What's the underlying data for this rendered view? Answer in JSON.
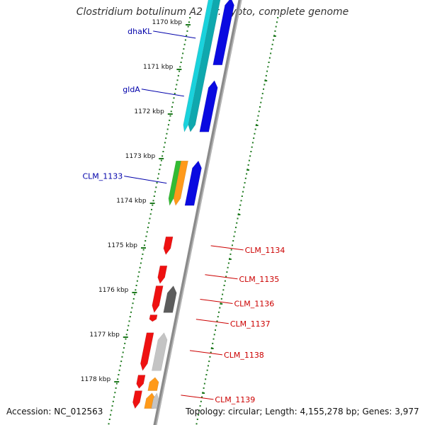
{
  "header": {
    "title": "Clostridium botulinum A2 str. Kyoto, complete genome"
  },
  "footer": {
    "accession": "Accession: NC_012563",
    "summary": "Topology: circular; Length: 4,155,278 bp; Genes: 3,977"
  },
  "colors": {
    "backbone": "#8a8a8a",
    "tick": "#1f7a1f",
    "left_label": "#0000aa",
    "right_label": "#cc0000",
    "cyan": "#1ad2dc",
    "teal": "#0fa8ae",
    "blue": "#0a0ae0",
    "red": "#ee1111",
    "orange": "#ff9a1a",
    "green": "#33bb33",
    "dark_gray": "#5c5c5c",
    "light_gray": "#c4c4c4"
  },
  "scale_labels": [
    {
      "kbp": 1170,
      "text": "1170 kbp"
    },
    {
      "kbp": 1171,
      "text": "1171 kbp"
    },
    {
      "kbp": 1172,
      "text": "1172 kbp"
    },
    {
      "kbp": 1173,
      "text": "1173 kbp"
    },
    {
      "kbp": 1174,
      "text": "1174 kbp"
    },
    {
      "kbp": 1175,
      "text": "1175 kbp"
    },
    {
      "kbp": 1176,
      "text": "1176 kbp"
    },
    {
      "kbp": 1177,
      "text": "1177 kbp"
    },
    {
      "kbp": 1178,
      "text": "1178 kbp"
    }
  ],
  "features": [
    {
      "name": "",
      "strand": "+",
      "track": 1,
      "start_kbp": 1169.4,
      "end_kbp": 1172.4,
      "color": "teal"
    },
    {
      "name": "",
      "strand": "+",
      "track": 2,
      "start_kbp": 1169.4,
      "end_kbp": 1172.4,
      "color": "cyan"
    },
    {
      "name": "",
      "strand": "-",
      "track": 1,
      "start_kbp": 1169.4,
      "end_kbp": 1170.9,
      "color": "blue"
    },
    {
      "name": "",
      "strand": "-",
      "track": 1,
      "start_kbp": 1171.25,
      "end_kbp": 1172.4,
      "color": "blue"
    },
    {
      "name": "",
      "strand": "+",
      "track": 1,
      "start_kbp": 1173.05,
      "end_kbp": 1174.05,
      "color": "orange"
    },
    {
      "name": "",
      "strand": "+",
      "track": 2,
      "start_kbp": 1173.05,
      "end_kbp": 1174.05,
      "color": "green"
    },
    {
      "name": "",
      "strand": "-",
      "track": 1,
      "start_kbp": 1173.05,
      "end_kbp": 1174.05,
      "color": "blue"
    },
    {
      "name": "",
      "strand": "+",
      "track": 1,
      "start_kbp": 1174.75,
      "end_kbp": 1175.15,
      "color": "red"
    },
    {
      "name": "",
      "strand": "+",
      "track": 1,
      "start_kbp": 1175.4,
      "end_kbp": 1175.8,
      "color": "red"
    },
    {
      "name": "",
      "strand": "+",
      "track": 1,
      "start_kbp": 1175.85,
      "end_kbp": 1176.45,
      "color": "red"
    },
    {
      "name": "",
      "strand": "-",
      "track": 1,
      "start_kbp": 1175.85,
      "end_kbp": 1176.45,
      "color": "dark_gray"
    },
    {
      "name": "",
      "strand": "+",
      "track": 1,
      "start_kbp": 1176.5,
      "end_kbp": 1176.65,
      "color": "red"
    },
    {
      "name": "",
      "strand": "+",
      "track": 1,
      "start_kbp": 1176.9,
      "end_kbp": 1177.75,
      "color": "red"
    },
    {
      "name": "",
      "strand": "-",
      "track": 1,
      "start_kbp": 1176.9,
      "end_kbp": 1177.75,
      "color": "light_gray"
    },
    {
      "name": "",
      "strand": "+",
      "track": 1,
      "start_kbp": 1177.85,
      "end_kbp": 1178.15,
      "color": "red"
    },
    {
      "name": "",
      "strand": "-",
      "track": 1,
      "start_kbp": 1177.9,
      "end_kbp": 1178.2,
      "color": "orange"
    },
    {
      "name": "",
      "strand": "+",
      "track": 1,
      "start_kbp": 1178.2,
      "end_kbp": 1178.6,
      "color": "red"
    },
    {
      "name": "",
      "strand": "-",
      "track": 1,
      "start_kbp": 1178.25,
      "end_kbp": 1178.6,
      "color": "orange"
    },
    {
      "name": "",
      "strand": "-",
      "track": 2,
      "start_kbp": 1178.25,
      "end_kbp": 1178.6,
      "color": "light_gray"
    }
  ],
  "gene_labels": [
    {
      "text": "dhaKL",
      "side": "left",
      "anchor_kbp": 1170.3
    },
    {
      "text": "gldA",
      "side": "left",
      "anchor_kbp": 1171.6
    },
    {
      "text": "CLM_1133",
      "side": "left",
      "anchor_kbp": 1173.55
    },
    {
      "text": "CLM_1134",
      "side": "right",
      "anchor_kbp": 1174.95
    },
    {
      "text": "CLM_1135",
      "side": "right",
      "anchor_kbp": 1175.6
    },
    {
      "text": "CLM_1136",
      "side": "right",
      "anchor_kbp": 1176.15
    },
    {
      "text": "CLM_1137",
      "side": "right",
      "anchor_kbp": 1176.6
    },
    {
      "text": "CLM_1138",
      "side": "right",
      "anchor_kbp": 1177.3
    },
    {
      "text": "CLM_1139",
      "side": "right",
      "anchor_kbp": 1178.3
    }
  ]
}
